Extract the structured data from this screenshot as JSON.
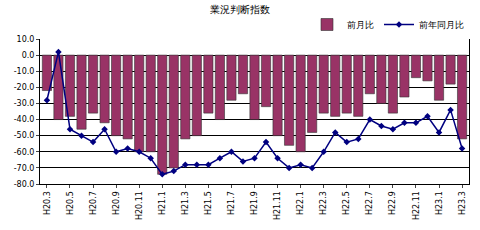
{
  "chart_data": {
    "type": "bar",
    "title": "業況判断指数",
    "categories": [
      "H20.3",
      null,
      "H20.5",
      null,
      "H20.7",
      null,
      "H20.9",
      null,
      "H20.11",
      null,
      "H21.1",
      null,
      "H21.3",
      null,
      "H21.5",
      null,
      "H21.7",
      null,
      "H21.9",
      null,
      "H21.11",
      null,
      "H22.1",
      null,
      "H22.3",
      null,
      "H22.5",
      null,
      "H22.7",
      null,
      "H22.9",
      null,
      "H22.11",
      null,
      "H23.1",
      null,
      "H23.3"
    ],
    "series": [
      {
        "name": "前月比",
        "type": "bar",
        "color": "#993366",
        "values": [
          -22,
          -40,
          -38,
          -46,
          -36,
          -42,
          -50,
          -52,
          -60,
          -60,
          -74,
          -70,
          -52,
          -50,
          -36,
          -40,
          -28,
          -24,
          -40,
          -32,
          -50,
          -56,
          -60,
          -48,
          -36,
          -38,
          -36,
          -38,
          -24,
          -30,
          -36,
          -26,
          -14,
          -16,
          -28,
          -18,
          -52
        ]
      },
      {
        "name": "前年同月比",
        "type": "line",
        "color": "#000080",
        "marker": "diamond",
        "values": [
          -28,
          2,
          -46,
          -50,
          -54,
          -46,
          -60,
          -58,
          -60,
          -64,
          -74,
          -72,
          -68,
          -68,
          -68,
          -64,
          -60,
          -66,
          -64,
          -54,
          -64,
          -70,
          -68,
          -70,
          -60,
          -48,
          -54,
          -52,
          -40,
          -44,
          -46,
          -42,
          -42,
          -38,
          -48,
          -34,
          -58
        ]
      }
    ],
    "ylim": [
      -80,
      10
    ],
    "yticks": [
      {
        "value": -80,
        "label": "-80.0"
      },
      {
        "value": -70,
        "label": "-70.0"
      },
      {
        "value": -60,
        "label": "-60.0"
      },
      {
        "value": -50,
        "label": "-50.0"
      },
      {
        "value": -40,
        "label": "-40.0"
      },
      {
        "value": -30,
        "label": "-30.0"
      },
      {
        "value": -20,
        "label": "-20.0"
      },
      {
        "value": -10,
        "label": "-10.0"
      },
      {
        "value": 0,
        "label": "0.0"
      },
      {
        "value": 10,
        "label": "10.0"
      }
    ],
    "grid": true,
    "legend": "upper right"
  }
}
